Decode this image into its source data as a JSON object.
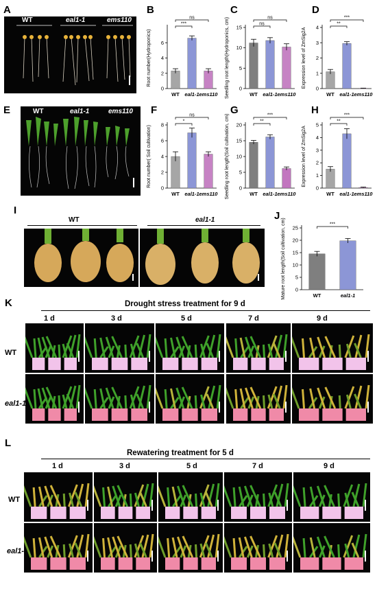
{
  "panels": {
    "A": {
      "label": "A",
      "headers": [
        "WT",
        "eal1-1",
        "ems110"
      ]
    },
    "E": {
      "label": "E",
      "headers": [
        "WT",
        "eal1-1",
        "ems110"
      ]
    },
    "I": {
      "label": "I",
      "headers": [
        "WT",
        "eal1-1"
      ]
    },
    "K": {
      "label": "K",
      "title": "Drought stress treatment for 9 d",
      "days": [
        "1 d",
        "3 d",
        "5 d",
        "7 d",
        "9 d"
      ],
      "rows": [
        "WT",
        "eal1-1"
      ]
    },
    "L": {
      "label": "L",
      "title": "Rewatering treatment  for 5 d",
      "days": [
        "1 d",
        "3 d",
        "5 d",
        "7 d",
        "9 d"
      ],
      "rows": [
        "WT",
        "eal1-1"
      ]
    }
  },
  "colors": {
    "wt": "#a6a6a6",
    "eal1": "#8c96d6",
    "ems110": "#c683c4",
    "wt_dark": "#7f7f7f",
    "eal1_dark": "#7b86cf",
    "ems110_dark": "#c276bf"
  },
  "chart_data": [
    {
      "label": "B",
      "type": "bar",
      "categories": [
        "WT",
        "eal1-1",
        "ems110"
      ],
      "values": [
        2.3,
        6.6,
        2.3
      ],
      "errors": [
        0.3,
        0.3,
        0.3
      ],
      "ylabel": "Root  number(Hydroponics)",
      "ylim": [
        0,
        8
      ],
      "yticks": [
        0,
        2,
        4,
        6
      ],
      "colors": [
        "#a6a6a6",
        "#8c96d6",
        "#c683c4"
      ],
      "sig": [
        {
          "from": 0,
          "to": 1,
          "text": "***"
        },
        {
          "from": 0,
          "to": 2,
          "text": "ns"
        }
      ]
    },
    {
      "label": "C",
      "type": "bar",
      "categories": [
        "WT",
        "eal1-1",
        "ems110"
      ],
      "values": [
        11.2,
        11.8,
        10.2
      ],
      "errors": [
        0.9,
        0.7,
        0.8
      ],
      "ylabel": "Seedling root length(Hydroponics, cm)",
      "ylim": [
        0,
        15
      ],
      "yticks": [
        0,
        5,
        10,
        15
      ],
      "colors": [
        "#7f7f7f",
        "#8c96d6",
        "#c683c4"
      ],
      "sig": [
        {
          "from": 0,
          "to": 1,
          "text": "ns"
        },
        {
          "from": 0,
          "to": 2,
          "text": "ns"
        }
      ]
    },
    {
      "label": "D",
      "type": "bar",
      "categories": [
        "WT",
        "eal1-1",
        "ems110"
      ],
      "values": [
        1.1,
        2.95,
        0.02
      ],
      "errors": [
        0.15,
        0.12,
        0.01
      ],
      "ylabel": "Expression level of ZmSig2A",
      "ylim": [
        0,
        4
      ],
      "yticks": [
        0,
        1,
        2,
        3,
        4
      ],
      "colors": [
        "#a6a6a6",
        "#8c96d6",
        "#c683c4"
      ],
      "sig": [
        {
          "from": 0,
          "to": 1,
          "text": "**"
        },
        {
          "from": 0,
          "to": 2,
          "text": "***"
        }
      ]
    },
    {
      "label": "F",
      "type": "bar",
      "categories": [
        "WT",
        "eal1-1",
        "ems110"
      ],
      "values": [
        4.0,
        7.0,
        4.3
      ],
      "errors": [
        0.6,
        0.6,
        0.3
      ],
      "ylabel": "Root  number( Soil cultivation)",
      "ylim": [
        0,
        8
      ],
      "yticks": [
        0,
        2,
        4,
        6,
        8
      ],
      "colors": [
        "#a6a6a6",
        "#8c96d6",
        "#c683c4"
      ],
      "sig": [
        {
          "from": 0,
          "to": 1,
          "text": "*"
        },
        {
          "from": 0,
          "to": 2,
          "text": "ns"
        }
      ]
    },
    {
      "label": "G",
      "type": "bar",
      "categories": [
        "WT",
        "eal1-1",
        "ems110"
      ],
      "values": [
        14.5,
        16.2,
        6.2
      ],
      "errors": [
        0.6,
        0.7,
        0.5
      ],
      "ylabel": "Seedling root length(Soil cultivation, cm)",
      "ylim": [
        0,
        20
      ],
      "yticks": [
        0,
        5,
        10,
        15,
        20
      ],
      "colors": [
        "#7f7f7f",
        "#8c96d6",
        "#c276bf"
      ],
      "sig": [
        {
          "from": 0,
          "to": 1,
          "text": "**"
        },
        {
          "from": 0,
          "to": 2,
          "text": "***"
        }
      ]
    },
    {
      "label": "H",
      "type": "bar",
      "categories": [
        "WT",
        "eal1-1",
        "ems110"
      ],
      "values": [
        1.5,
        4.3,
        0.05
      ],
      "errors": [
        0.2,
        0.4,
        0.03
      ],
      "ylabel": "Expression level of ZmSig2A",
      "ylim": [
        0,
        5
      ],
      "yticks": [
        0,
        1,
        2,
        3,
        4,
        5
      ],
      "colors": [
        "#a6a6a6",
        "#8c96d6",
        "#c683c4"
      ],
      "sig": [
        {
          "from": 0,
          "to": 1,
          "text": "**"
        },
        {
          "from": 0,
          "to": 2,
          "text": "***"
        }
      ]
    },
    {
      "label": "J",
      "type": "bar",
      "categories": [
        "WT",
        "eal1-1"
      ],
      "values": [
        14.5,
        19.8
      ],
      "errors": [
        1.0,
        0.9
      ],
      "ylabel": "Mature root length(Soil cultivation, cm)",
      "ylim": [
        0,
        25
      ],
      "yticks": [
        0,
        5,
        10,
        15,
        20,
        25
      ],
      "colors": [
        "#7f7f7f",
        "#8c96d6"
      ],
      "sig": [
        {
          "from": 0,
          "to": 1,
          "text": "***"
        }
      ]
    }
  ]
}
